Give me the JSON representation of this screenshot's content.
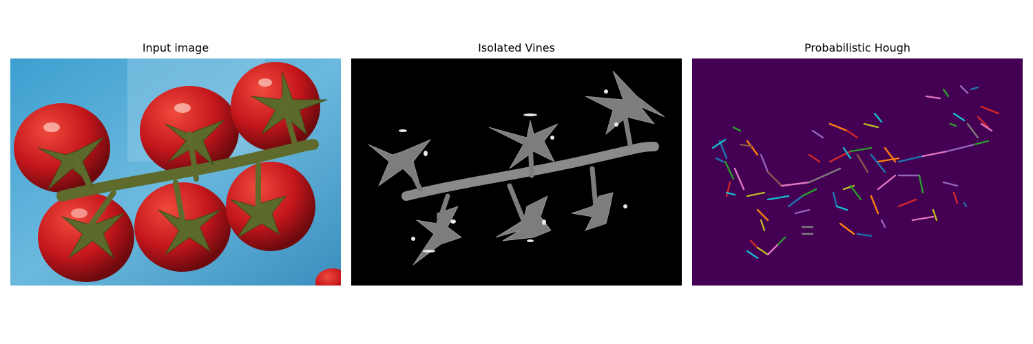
{
  "figure": {
    "panels": [
      {
        "title": "Input image"
      },
      {
        "title": "Isolated Vines"
      },
      {
        "title": "Probabilistic Hough"
      }
    ]
  },
  "colors": {
    "background_tray": "#4fa8d4",
    "tomato": "#c4161c",
    "vine": "#5e6b2c",
    "mask_background": "#000000",
    "hough_background": "#440154"
  }
}
